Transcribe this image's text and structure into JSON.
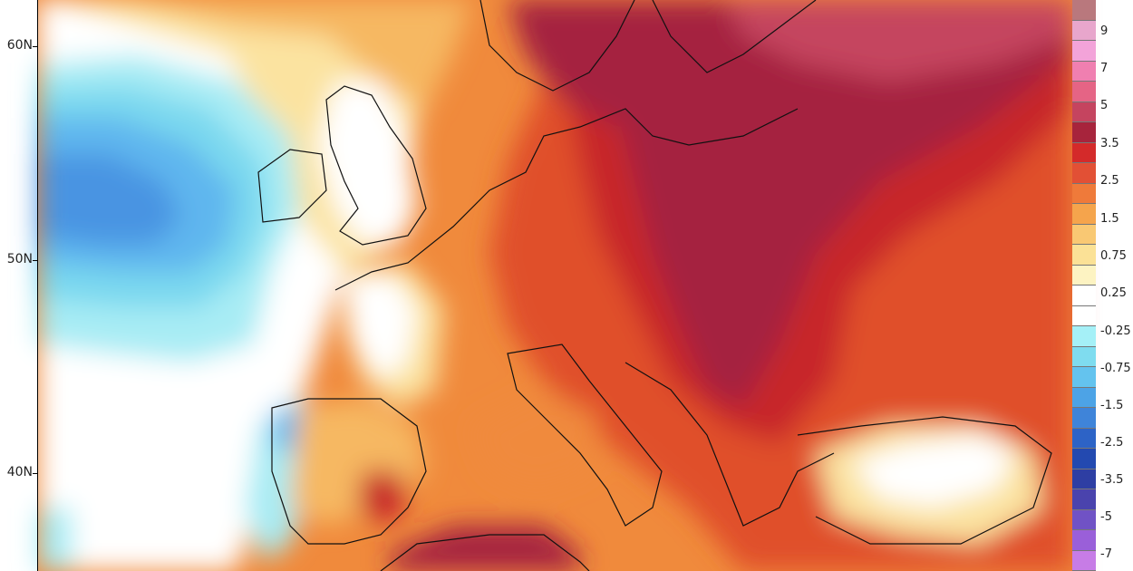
{
  "map": {
    "latitude_labels": [
      "60N",
      "50N",
      "40N"
    ],
    "colors": {
      "deep_warm": "#a5243f",
      "warm_red": "#c7282c",
      "orange_red": "#e0502b",
      "orange": "#f08a3c",
      "light_orange": "#f6b862",
      "pale_yellow": "#fbe3a0",
      "white": "#ffffff",
      "pale_cyan": "#a8ecf4",
      "cyan": "#7ad8ef",
      "sky_blue": "#5fb6ee",
      "blue": "#4a94e2"
    }
  },
  "legend": {
    "labels": [
      "9",
      "7",
      "5",
      "3.5",
      "2.5",
      "1.5",
      "0.75",
      "0.25",
      "-0.25",
      "-0.75",
      "-1.5",
      "-2.5",
      "-3.5",
      "-5",
      "-7"
    ],
    "colors": [
      "#b9787d",
      "#e8a6cc",
      "#f3a3d9",
      "#f07fb0",
      "#e56485",
      "#c5445f",
      "#a7243c",
      "#d42a2a",
      "#e25035",
      "#ef7a3a",
      "#f5a44c",
      "#f9c873",
      "#fbe196",
      "#fdf3c2",
      "#ffffff",
      "#ffffff",
      "#a5f0f7",
      "#7fdcef",
      "#64c3ee",
      "#4da3e6",
      "#3f84d9",
      "#2d63c6",
      "#2349b0",
      "#2e3ea3",
      "#4a43ad",
      "#7052c5",
      "#9a5fd9",
      "#c77ce6"
    ]
  }
}
